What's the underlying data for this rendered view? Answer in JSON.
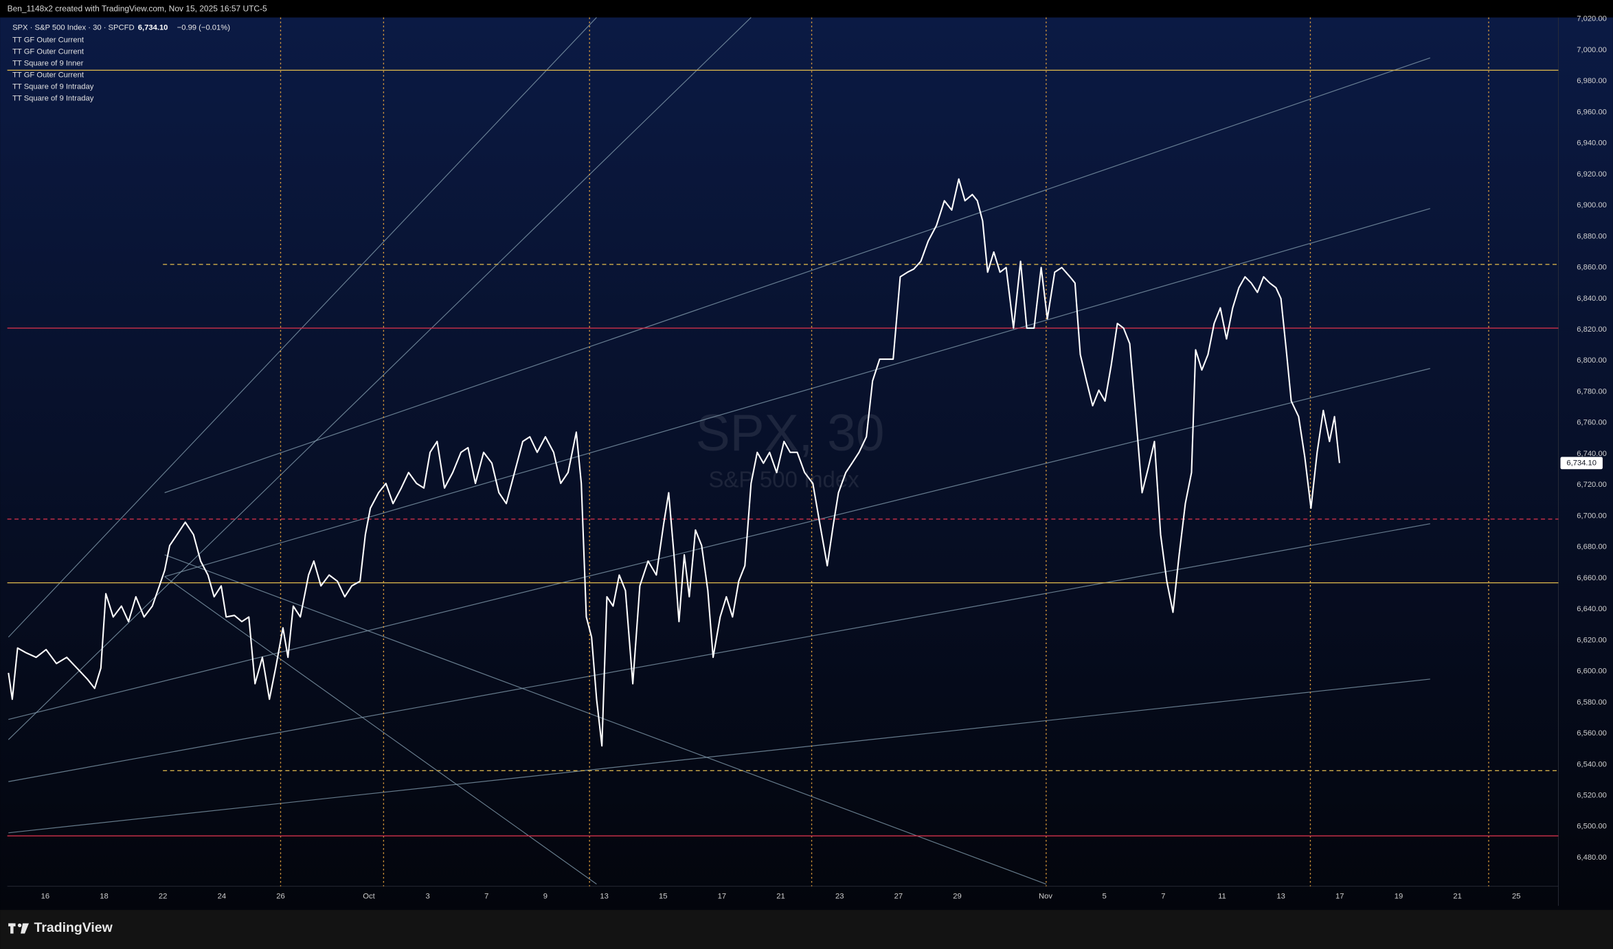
{
  "header": "Ben_1148x2 created with TradingView.com, Nov 15, 2025 16:57 UTC-5",
  "footer": {
    "brand": "TradingView"
  },
  "chart_data": {
    "type": "line",
    "title": "SPX · S&P 500 Index · 30 · SPCFD",
    "last_price_label": "6,734.10",
    "change_label": "−0.99 (−0.01%)",
    "indicators": [
      "TT GF Outer Current",
      "TT GF Outer Current",
      "TT Square of 9 Inner",
      "TT GF Outer Current",
      "TT Square of 9 Intraday",
      "TT Square of 9 Intraday"
    ],
    "watermark": {
      "symbol": "SPX, 30",
      "name": "S&P 500 Index"
    },
    "color": "#ffffff",
    "x": [
      -1.25,
      -1.12,
      -0.94,
      -0.66,
      -0.31,
      0.03,
      0.38,
      0.73,
      1.08,
      1.43,
      1.68,
      1.89,
      2.06,
      2.31,
      2.59,
      2.83,
      3.08,
      3.36,
      3.64,
      3.88,
      4.06,
      4.23,
      4.48,
      4.76,
      5.04,
      5.28,
      5.53,
      5.74,
      5.98,
      6.15,
      6.43,
      6.68,
      6.92,
      7.13,
      7.38,
      7.62,
      7.83,
      8.08,
      8.25,
      8.43,
      8.67,
      8.95,
      9.13,
      9.37,
      9.65,
      9.93,
      10.18,
      10.42,
      10.7,
      10.88,
      11.05,
      11.33,
      11.58,
      11.82,
      12.1,
      12.35,
      12.62,
      12.87,
      13.08,
      13.32,
      13.57,
      13.85,
      14.13,
      14.37,
      14.62,
      14.9,
      15.18,
      15.42,
      15.67,
      15.95,
      16.23,
      16.47,
      16.72,
      17.0,
      17.28,
      17.52,
      17.77,
      18.05,
      18.22,
      18.39,
      18.57,
      18.74,
      18.92,
      19.09,
      19.3,
      19.51,
      19.72,
      19.97,
      20.21,
      20.49,
      20.77,
      21.02,
      21.19,
      21.37,
      21.54,
      21.72,
      21.89,
      22.1,
      22.31,
      22.52,
      22.7,
      22.94,
      23.15,
      23.36,
      23.57,
      23.78,
      23.99,
      24.2,
      24.41,
      24.62,
      24.86,
      25.11,
      25.32,
      25.56,
      25.81,
      26.09,
      26.3,
      26.58,
      26.79,
      26.96,
      27.21,
      27.42,
      27.66,
      27.91,
      28.12,
      28.36,
      28.61,
      28.82,
      29.06,
      29.31,
      29.52,
      29.76,
      30.01,
      30.29,
      30.56,
      30.81,
      31.05,
      31.26,
      31.51,
      31.68,
      31.86,
      32.03,
      32.24,
      32.45,
      32.66,
      32.91,
      33.15,
      33.36,
      33.61,
      33.85,
      34.06,
      34.31,
      34.55,
      34.83,
      35.0,
      35.18,
      35.39,
      35.6,
      35.81,
      36.02,
      36.23,
      36.44,
      36.65,
      36.86,
      37.07,
      37.28,
      37.49,
      37.7,
      37.91,
      38.12,
      38.33,
      38.54,
      38.75,
      38.96,
      39.1,
      39.31,
      39.52,
      39.73,
      39.94,
      40.15,
      40.36,
      40.57,
      40.78,
      40.99,
      41.2,
      41.41,
      41.62,
      41.83,
      42.0,
      42.18,
      42.35,
      42.6,
      42.81,
      43.02,
      43.23,
      43.44,
      43.65,
      43.82,
      43.99
    ],
    "values": [
      6599,
      6582,
      6615,
      6612,
      6609,
      6614,
      6605,
      6609,
      6602,
      6595,
      6589,
      6602,
      6650,
      6635,
      6642,
      6632,
      6648,
      6635,
      6642,
      6655,
      6665,
      6681,
      6688,
      6696,
      6688,
      6671,
      6662,
      6648,
      6655,
      6635,
      6636,
      6632,
      6635,
      6592,
      6609,
      6582,
      6602,
      6628,
      6609,
      6642,
      6635,
      6662,
      6671,
      6655,
      6662,
      6658,
      6648,
      6655,
      6658,
      6688,
      6705,
      6715,
      6721,
      6708,
      6718,
      6728,
      6721,
      6718,
      6741,
      6748,
      6718,
      6728,
      6741,
      6744,
      6721,
      6741,
      6734,
      6715,
      6708,
      6728,
      6748,
      6751,
      6741,
      6751,
      6741,
      6721,
      6728,
      6754,
      6721,
      6635,
      6622,
      6582,
      6552,
      6648,
      6642,
      6662,
      6652,
      6592,
      6655,
      6671,
      6662,
      6695,
      6715,
      6675,
      6632,
      6675,
      6648,
      6691,
      6681,
      6652,
      6609,
      6635,
      6648,
      6635,
      6658,
      6668,
      6721,
      6741,
      6734,
      6741,
      6728,
      6748,
      6741,
      6741,
      6728,
      6721,
      6698,
      6668,
      6695,
      6715,
      6728,
      6734,
      6741,
      6751,
      6787,
      6801,
      6801,
      6801,
      6854,
      6857,
      6859,
      6864,
      6877,
      6887,
      6903,
      6897,
      6917,
      6903,
      6907,
      6903,
      6890,
      6857,
      6870,
      6857,
      6860,
      6821,
      6864,
      6821,
      6821,
      6860,
      6827,
      6857,
      6860,
      6854,
      6850,
      6804,
      6787,
      6771,
      6781,
      6774,
      6797,
      6824,
      6821,
      6811,
      6764,
      6715,
      6731,
      6748,
      6688,
      6658,
      6638,
      6675,
      6708,
      6728,
      6807,
      6794,
      6804,
      6824,
      6834,
      6814,
      6834,
      6847,
      6854,
      6850,
      6844,
      6854,
      6850,
      6847,
      6840,
      6807,
      6774,
      6764,
      6738,
      6705,
      6741,
      6768,
      6748,
      6764,
      6734.1
    ],
    "indicator_color": "#7f98aa",
    "indicator_lines": [
      {
        "x": [
          -1.25,
          47.07
        ],
        "values": [
          6496,
          6595
        ]
      },
      {
        "x": [
          -1.25,
          47.07
        ],
        "values": [
          6529,
          6695
        ]
      },
      {
        "x": [
          -1.25,
          47.07
        ],
        "values": [
          6569,
          6795
        ]
      },
      {
        "x": [
          4.06,
          47.07
        ],
        "values": [
          6661,
          6898
        ]
      },
      {
        "x": [
          4.06,
          47.07
        ],
        "values": [
          6715,
          6995
        ]
      },
      {
        "x": [
          -1.25,
          23.99
        ],
        "values": [
          6556,
          7021
        ]
      },
      {
        "x": [
          -1.25,
          18.74
        ],
        "values": [
          6622,
          7021
        ]
      },
      {
        "x": [
          4.06,
          34.02
        ],
        "values": [
          6675,
          6463
        ]
      },
      {
        "x": [
          4.06,
          18.74
        ],
        "values": [
          6661,
          6463
        ]
      }
    ],
    "levels": [
      {
        "value": 6987,
        "color": "#d4b04a",
        "dashed": false
      },
      {
        "value": 6657,
        "color": "#d4b04a",
        "dashed": false
      },
      {
        "value": 6821,
        "color": "#d0304a",
        "dashed": false
      },
      {
        "value": 6494,
        "color": "#d0304a",
        "dashed": false
      },
      {
        "value": 6698,
        "color": "#d0304a",
        "dashed": true
      },
      {
        "value": 6862,
        "color": "#d4b04a",
        "dashed": true,
        "x_start": 4.0
      },
      {
        "value": 6536,
        "color": "#d4b04a",
        "dashed": true,
        "x_start": 4.0
      }
    ],
    "vline_color": "#e6a23c",
    "vlines": [
      8,
      11.5,
      18.5,
      26.05,
      34.02,
      43.0,
      49.06
    ],
    "xlim": [
      -1.29,
      51.43
    ],
    "ylim": [
      6449,
      7021
    ],
    "xticks": [
      {
        "value": 0,
        "label": "16"
      },
      {
        "value": 2,
        "label": "18"
      },
      {
        "value": 4,
        "label": "22"
      },
      {
        "value": 6,
        "label": "24"
      },
      {
        "value": 8,
        "label": "26"
      },
      {
        "value": 11,
        "label": "Oct"
      },
      {
        "value": 13,
        "label": "3"
      },
      {
        "value": 15,
        "label": "7"
      },
      {
        "value": 17,
        "label": "9"
      },
      {
        "value": 19,
        "label": "13"
      },
      {
        "value": 21,
        "label": "15"
      },
      {
        "value": 23,
        "label": "17"
      },
      {
        "value": 25,
        "label": "21"
      },
      {
        "value": 27,
        "label": "23"
      },
      {
        "value": 29,
        "label": "27"
      },
      {
        "value": 31,
        "label": "29"
      },
      {
        "value": 34,
        "label": "Nov"
      },
      {
        "value": 36,
        "label": "5"
      },
      {
        "value": 38,
        "label": "7"
      },
      {
        "value": 40,
        "label": "11"
      },
      {
        "value": 42,
        "label": "13"
      },
      {
        "value": 44,
        "label": "17"
      },
      {
        "value": 46,
        "label": "19"
      },
      {
        "value": 48,
        "label": "21"
      },
      {
        "value": 50,
        "label": "25"
      }
    ],
    "yticks": [
      {
        "value": 6480,
        "label": "6,480.00"
      },
      {
        "value": 6500,
        "label": "6,500.00"
      },
      {
        "value": 6520,
        "label": "6,520.00"
      },
      {
        "value": 6540,
        "label": "6,540.00"
      },
      {
        "value": 6560,
        "label": "6,560.00"
      },
      {
        "value": 6580,
        "label": "6,580.00"
      },
      {
        "value": 6600,
        "label": "6,600.00"
      },
      {
        "value": 6620,
        "label": "6,620.00"
      },
      {
        "value": 6640,
        "label": "6,640.00"
      },
      {
        "value": 6660,
        "label": "6,660.00"
      },
      {
        "value": 6680,
        "label": "6,680.00"
      },
      {
        "value": 6700,
        "label": "6,700.00"
      },
      {
        "value": 6720,
        "label": "6,720.00"
      },
      {
        "value": 6740,
        "label": "6,740.00"
      },
      {
        "value": 6760,
        "label": "6,760.00"
      },
      {
        "value": 6780,
        "label": "6,780.00"
      },
      {
        "value": 6800,
        "label": "6,800.00"
      },
      {
        "value": 6820,
        "label": "6,820.00"
      },
      {
        "value": 6840,
        "label": "6,840.00"
      },
      {
        "value": 6860,
        "label": "6,860.00"
      },
      {
        "value": 6880,
        "label": "6,880.00"
      },
      {
        "value": 6900,
        "label": "6,900.00"
      },
      {
        "value": 6920,
        "label": "6,920.00"
      },
      {
        "value": 6940,
        "label": "6,940.00"
      },
      {
        "value": 6960,
        "label": "6,960.00"
      },
      {
        "value": 6980,
        "label": "6,980.00"
      },
      {
        "value": 7000,
        "label": "7,000.00"
      },
      {
        "value": 7020,
        "label": "7,020.00"
      }
    ],
    "grid": false
  }
}
